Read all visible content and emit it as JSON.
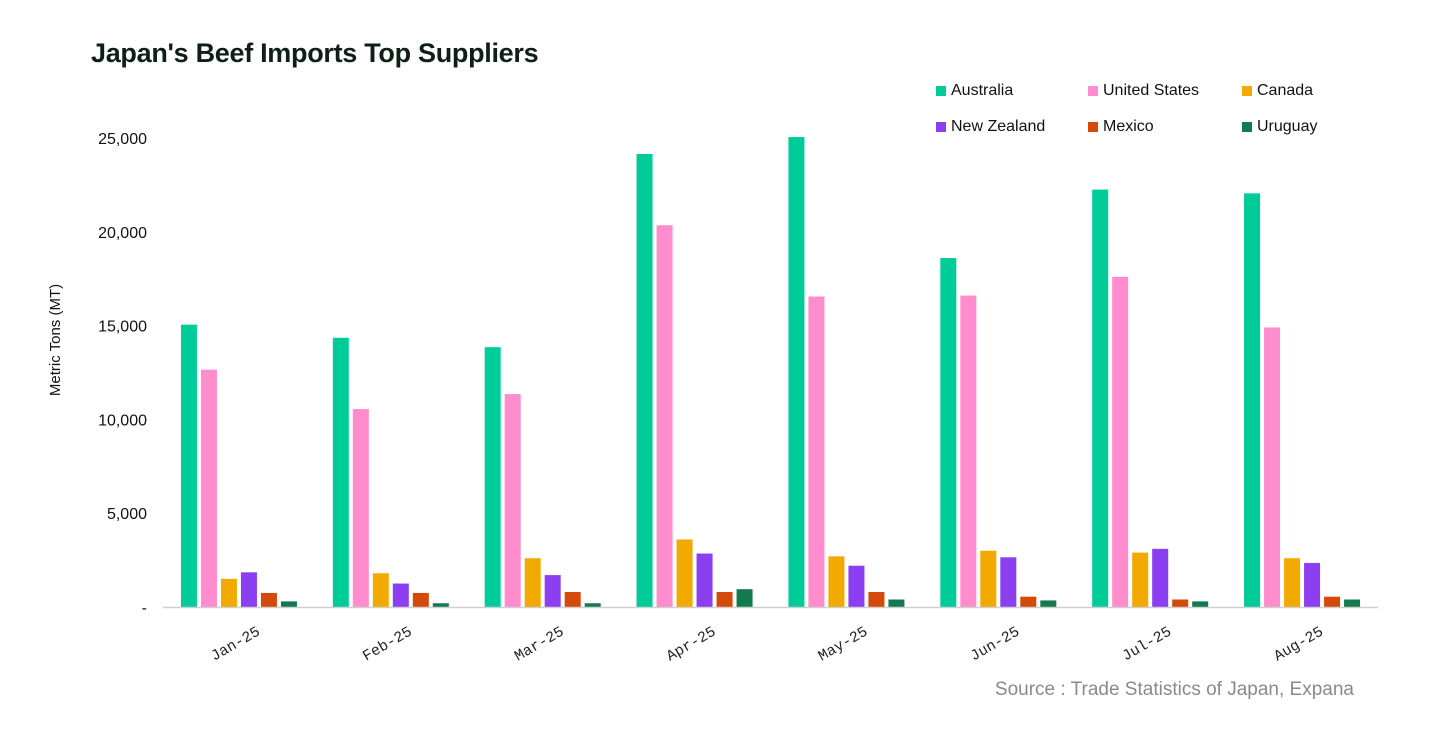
{
  "chart_data": {
    "type": "bar",
    "title": "Japan's Beef Imports Top Suppliers",
    "xlabel": "",
    "ylabel": "Metric Tons (MT)",
    "ylim": [
      0,
      25000
    ],
    "yticks": [
      0,
      5000,
      10000,
      15000,
      20000,
      25000
    ],
    "ytick_labels": [
      "-",
      "5,000",
      "10,000",
      "15,000",
      "20,000",
      "25,000"
    ],
    "categories": [
      "Jan-25",
      "Feb-25",
      "Mar-25",
      "Apr-25",
      "May-25",
      "Jun-25",
      "Jul-25",
      "Aug-25"
    ],
    "series": [
      {
        "name": "Australia",
        "color": "#00cc99",
        "values": [
          15050,
          14350,
          13850,
          24150,
          25050,
          18600,
          22250,
          22050
        ]
      },
      {
        "name": "United States",
        "color": "#ff8ccc",
        "values": [
          12650,
          10550,
          11350,
          20350,
          16550,
          16600,
          17600,
          14900
        ]
      },
      {
        "name": "Canada",
        "color": "#f2a900",
        "values": [
          1500,
          1800,
          2600,
          3600,
          2700,
          3000,
          2900,
          2600
        ]
      },
      {
        "name": "New Zealand",
        "color": "#8b3ff0",
        "values": [
          1850,
          1250,
          1700,
          2850,
          2200,
          2650,
          3100,
          2350
        ]
      },
      {
        "name": "Mexico",
        "color": "#d44a0a",
        "values": [
          750,
          750,
          800,
          800,
          800,
          550,
          400,
          550
        ]
      },
      {
        "name": "Uruguay",
        "color": "#137a4f",
        "values": [
          300,
          200,
          200,
          950,
          400,
          350,
          300,
          400
        ]
      }
    ],
    "grid": false,
    "legend_position": "top-right",
    "source": "Source : Trade Statistics of Japan, Expana"
  }
}
